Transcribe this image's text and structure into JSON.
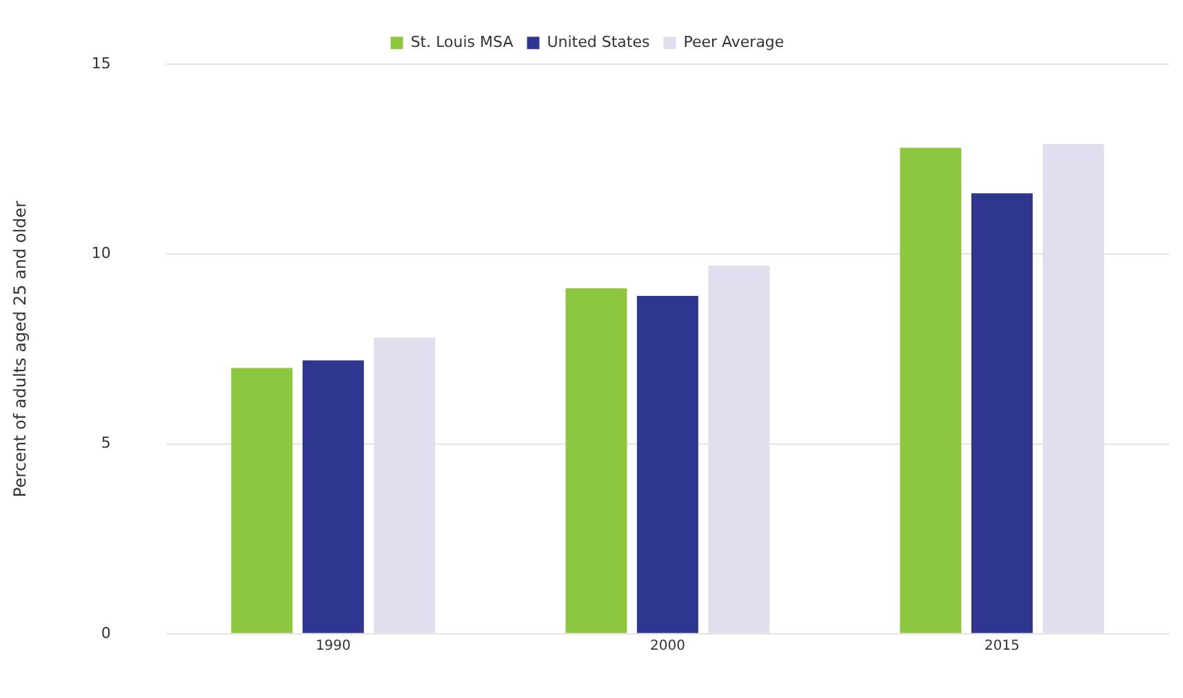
{
  "chart_data": {
    "type": "bar",
    "ylabel": "Percent of adults aged 25 and older",
    "categories": [
      "1990",
      "2000",
      "2015"
    ],
    "series": [
      {
        "name": "St. Louis MSA",
        "color": "#8dc63f",
        "values": [
          7.0,
          9.1,
          12.8
        ]
      },
      {
        "name": "United States",
        "color": "#2e3690",
        "values": [
          7.2,
          8.9,
          11.6
        ]
      },
      {
        "name": "Peer Average",
        "color": "#dfdfef",
        "values": [
          7.8,
          9.7,
          12.9
        ]
      }
    ],
    "ylim": [
      0,
      15
    ],
    "yticks": [
      0,
      5,
      10,
      15
    ],
    "grid": "y",
    "legend": "top"
  }
}
